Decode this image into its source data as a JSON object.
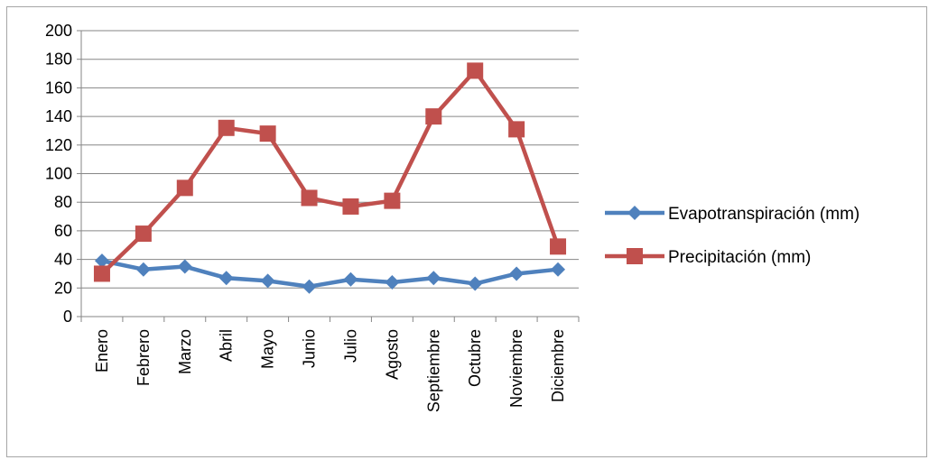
{
  "chart_data": {
    "type": "line",
    "categories": [
      "Enero",
      "Febrero",
      "Marzo",
      "Abril",
      "Mayo",
      "Junio",
      "Julio",
      "Agosto",
      "Septiembre",
      "Octubre",
      "Noviembre",
      "Diciembre"
    ],
    "series": [
      {
        "name": "Evapotranspiración (mm)",
        "color": "#4f81bd",
        "marker": "diamond",
        "values": [
          39,
          33,
          35,
          27,
          25,
          21,
          26,
          24,
          27,
          23,
          30,
          33
        ]
      },
      {
        "name": "Precipitación (mm)",
        "color": "#c0504d",
        "marker": "square",
        "values": [
          30,
          58,
          90,
          132,
          128,
          83,
          77,
          81,
          140,
          172,
          131,
          49
        ]
      }
    ],
    "ylim": [
      0,
      200
    ],
    "yticks": [
      0,
      20,
      40,
      60,
      80,
      100,
      120,
      140,
      160,
      180,
      200
    ],
    "grid": true,
    "legend": "right"
  }
}
